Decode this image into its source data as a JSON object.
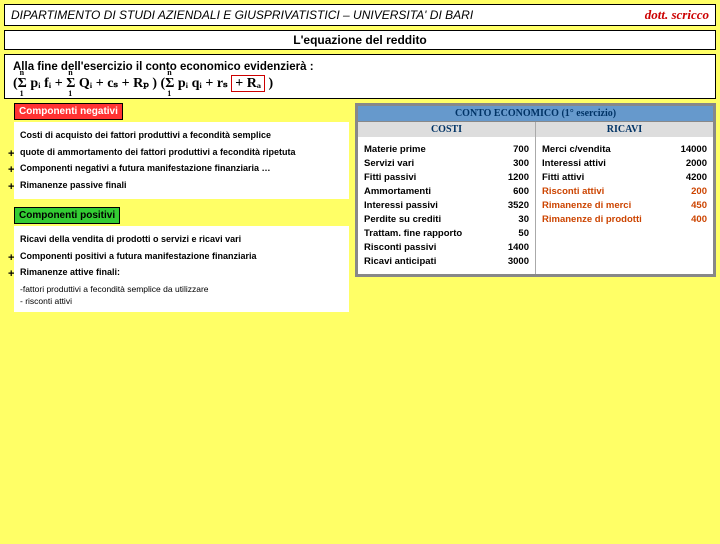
{
  "header": {
    "title": "DIPARTIMENTO DI STUDI AZIENDALI E GIUSPRIVATISTICI – UNIVERSITA' DI BARI",
    "author": "dott. scricco"
  },
  "subtitle": "L'equazione del reddito",
  "formula": {
    "intro": "Alla fine dell'esercizio il conto economico evidenzierà :",
    "left_paren": "(",
    "sum1": "Σ",
    "sum1_top": "n",
    "sum1_bot": "1",
    "term1": "pᵢ fᵢ + ",
    "sum2": "Σ",
    "term2": "Qᵢ + cₛ + Rₚ )",
    "mid": "   (",
    "sum3": "Σ",
    "term3": "pᵢ qᵢ   + rₛ  ",
    "ra": "+ Rₐ",
    "close": ")"
  },
  "negative": {
    "label": "Componenti negativi",
    "items": [
      "Costi di acquisto dei fattori produttivi a fecondità semplice",
      "quote di ammortamento dei fattori produttivi a fecondità ripetuta",
      "Componenti negativi a futura manifestazione finanziaria …",
      "Rimanenze passive finali"
    ]
  },
  "positive": {
    "label": "Componenti positivi",
    "items": [
      "Ricavi della vendita di prodotti o servizi e ricavi vari",
      "Componenti positivi a futura manifestazione finanziaria",
      "Rimanenze attive finali:"
    ],
    "sub": "-fattori produttivi a fecondità semplice da utilizzare\n- risconti attivi"
  },
  "table": {
    "title": "CONTO ECONOMICO",
    "title_ex": "(1° esercizio)",
    "head_left": "COSTI",
    "head_right": "RICAVI",
    "left_rows": [
      {
        "label": "Materie prime",
        "val": "700",
        "colored": false
      },
      {
        "label": "Servizi vari",
        "val": "300",
        "colored": false
      },
      {
        "label": "Fitti passivi",
        "val": "1200",
        "colored": false
      },
      {
        "label": "Ammortamenti",
        "val": "600",
        "colored": false
      },
      {
        "label": "Interessi passivi",
        "val": "3520",
        "colored": false
      },
      {
        "label": "Perdite su crediti",
        "val": "30",
        "colored": false
      },
      {
        "label": "Trattam. fine rapporto",
        "val": "50",
        "colored": false
      },
      {
        "label": "Risconti passivi",
        "val": "1400",
        "colored": false
      },
      {
        "label": "Ricavi anticipati",
        "val": "3000",
        "colored": false
      }
    ],
    "right_rows": [
      {
        "label": "Merci c/vendita",
        "val": "14000",
        "colored": false
      },
      {
        "label": "Interessi attivi",
        "val": "2000",
        "colored": false
      },
      {
        "label": "Fitti attivi",
        "val": "4200",
        "colored": false
      },
      {
        "label": "Risconti attivi",
        "val": "200",
        "colored": true
      },
      {
        "label": "Rimanenze di merci",
        "val": "450",
        "colored": true
      },
      {
        "label": "Rimanenze di prodotti",
        "val": "400",
        "colored": true
      }
    ]
  }
}
